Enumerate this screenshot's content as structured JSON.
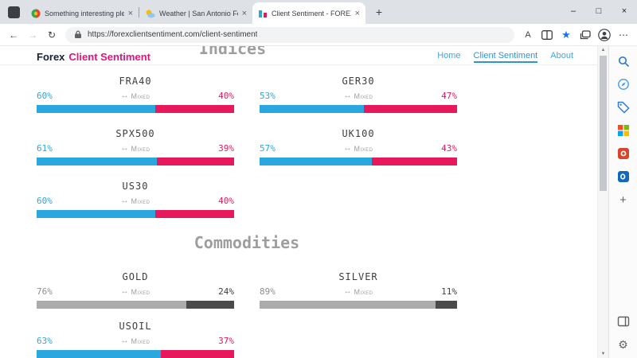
{
  "browser": {
    "tabs": [
      {
        "title": "Something interesting please po"
      },
      {
        "title": "Weather | San Antonio Forecast"
      },
      {
        "title": "Client Sentiment - FOREX Client"
      }
    ],
    "address": {
      "url": "https://forexclientsentiment.com/client-sentiment"
    }
  },
  "icons": {
    "back": "←",
    "forward": "→",
    "refresh": "↻",
    "read_aloud": "A",
    "star": "★",
    "more": "⋯",
    "new_tab": "+",
    "minimize": "–",
    "maximize": "□",
    "close": "×",
    "tab_close": "×",
    "mixed_arrow": "↔",
    "gear": "⚙",
    "sidebar_add": "+",
    "scroll_up": "▲",
    "scroll_down": "▼"
  },
  "sidebar_icons": [
    "search",
    "discover",
    "shopping",
    "microsoft-365",
    "office",
    "outlook",
    "add"
  ],
  "sidebar_bottom_icons": [
    "side-panel",
    "settings"
  ],
  "site": {
    "logo": {
      "primary": "Forex",
      "accent": "Client Sentiment"
    },
    "nav": [
      {
        "label": "Home",
        "active": false
      },
      {
        "label": "Client Sentiment",
        "active": true
      },
      {
        "label": "About",
        "active": false
      }
    ],
    "colors": {
      "long": "#2BA7E0",
      "short": "#E8185D",
      "gray_long": "#ABABAB",
      "gray_short": "#4A4A4A"
    },
    "sections": [
      {
        "title": "Indices",
        "items": [
          {
            "name": "FRA40",
            "left_pct": 60,
            "right_pct": 40,
            "sentiment": "Mixed",
            "left_color": "#2BA7E0",
            "right_color": "#E8185D",
            "left_text": "#2BA7E0",
            "right_text": "#E8185D"
          },
          {
            "name": "GER30",
            "left_pct": 53,
            "right_pct": 47,
            "sentiment": "Mixed",
            "left_color": "#2BA7E0",
            "right_color": "#E8185D",
            "left_text": "#2BA7E0",
            "right_text": "#E8185D"
          },
          {
            "name": "SPX500",
            "left_pct": 61,
            "right_pct": 39,
            "sentiment": "Mixed",
            "left_color": "#2BA7E0",
            "right_color": "#E8185D",
            "left_text": "#2BA7E0",
            "right_text": "#E8185D"
          },
          {
            "name": "UK100",
            "left_pct": 57,
            "right_pct": 43,
            "sentiment": "Mixed",
            "left_color": "#2BA7E0",
            "right_color": "#E8185D",
            "left_text": "#2BA7E0",
            "right_text": "#E8185D"
          },
          {
            "name": "US30",
            "left_pct": 60,
            "right_pct": 40,
            "sentiment": "Mixed",
            "left_color": "#2BA7E0",
            "right_color": "#E8185D",
            "left_text": "#2BA7E0",
            "right_text": "#E8185D"
          }
        ]
      },
      {
        "title": "Commodities",
        "items": [
          {
            "name": "GOLD",
            "left_pct": 76,
            "right_pct": 24,
            "sentiment": "Mixed",
            "left_color": "#ABABAB",
            "right_color": "#4A4A4A",
            "left_text": "#8F8F8F",
            "right_text": "#3F3F3F"
          },
          {
            "name": "SILVER",
            "left_pct": 89,
            "right_pct": 11,
            "sentiment": "Mixed",
            "left_color": "#ABABAB",
            "right_color": "#4A4A4A",
            "left_text": "#8F8F8F",
            "right_text": "#3F3F3F"
          },
          {
            "name": "USOIL",
            "left_pct": 63,
            "right_pct": 37,
            "sentiment": "Mixed",
            "left_color": "#2BA7E0",
            "right_color": "#E8185D",
            "left_text": "#2BA7E0",
            "right_text": "#E8185D"
          }
        ]
      }
    ]
  }
}
